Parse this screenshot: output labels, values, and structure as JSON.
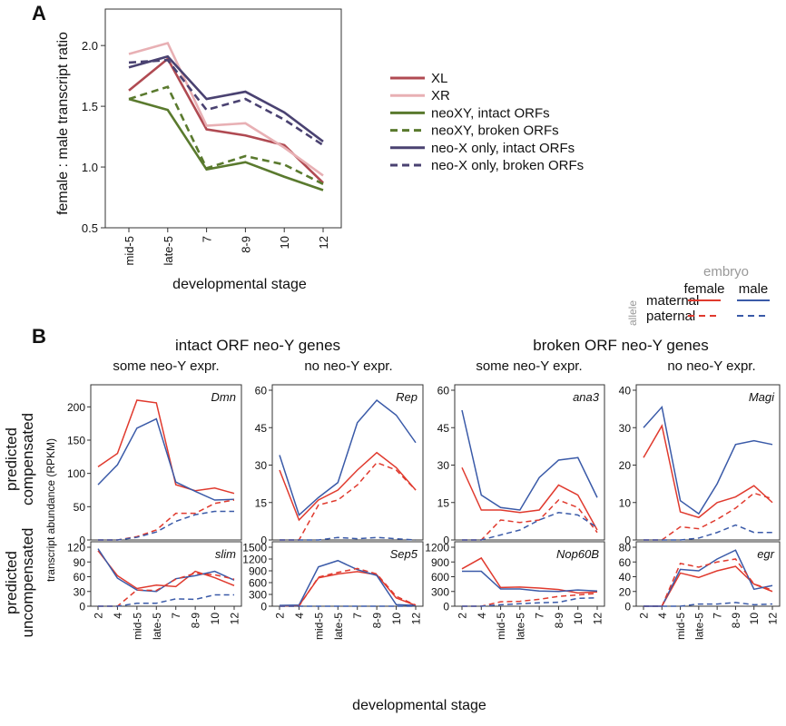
{
  "panel_labels": {
    "a": "A",
    "b": "B"
  },
  "colors": {
    "XL": "#b04a52",
    "XR": "#e8b0b4",
    "neoXY_intact": "#5a7a2e",
    "neoXY_broken": "#5a7a2e",
    "neoX_intact": "#4a4271",
    "neoX_broken": "#4a4271",
    "female": "#e03a2e",
    "male": "#3a5aa8",
    "grey_text": "#999999"
  },
  "chart_data": [
    {
      "id": "A",
      "type": "line",
      "xlabel": "developmental stage",
      "ylabel": "female : male transcript ratio",
      "categories": [
        "mid-5",
        "late-5",
        "7",
        "8-9",
        "10",
        "12"
      ],
      "ylim": [
        0.5,
        2.3
      ],
      "yticks": [
        "0.5",
        "1.0",
        "1.5",
        "2.0"
      ],
      "legend_position": "right",
      "series": [
        {
          "name": "XL",
          "key": "XL",
          "dash": false,
          "values": [
            1.63,
            1.89,
            1.31,
            1.26,
            1.18,
            0.87
          ]
        },
        {
          "name": "XR",
          "key": "XR",
          "dash": false,
          "values": [
            1.93,
            2.02,
            1.34,
            1.36,
            1.16,
            0.93
          ]
        },
        {
          "name": "neoXY, intact ORFs",
          "key": "neoXY_intact",
          "dash": false,
          "values": [
            1.56,
            1.47,
            0.98,
            1.04,
            0.92,
            0.81
          ]
        },
        {
          "name": "neoXY, broken ORFs",
          "key": "neoXY_broken",
          "dash": true,
          "values": [
            1.56,
            1.66,
            0.99,
            1.09,
            1.02,
            0.86
          ]
        },
        {
          "name": "neo-X only, intact ORFs",
          "key": "neoX_intact",
          "dash": false,
          "values": [
            1.82,
            1.91,
            1.56,
            1.62,
            1.45,
            1.21
          ]
        },
        {
          "name": "neo-X only, broken ORFs",
          "key": "neoX_broken",
          "dash": true,
          "values": [
            1.86,
            1.88,
            1.47,
            1.56,
            1.39,
            1.18
          ]
        }
      ]
    },
    {
      "id": "B",
      "type": "line",
      "xlabel": "developmental stage",
      "ylabel": "transcript abundance (RPKM)",
      "categories": [
        "2",
        "4",
        "mid-5",
        "late-5",
        "7",
        "8-9",
        "10",
        "12"
      ],
      "key": {
        "embryo": "embryo",
        "allele": "allele",
        "female": "female",
        "male": "male",
        "maternal": "maternal",
        "paternal": "paternal"
      },
      "group_titles": [
        "intact ORF neo-Y genes",
        "broken ORF neo-Y genes"
      ],
      "column_titles": [
        "some neo-Y expr.",
        "no neo-Y expr.",
        "some neo-Y expr.",
        "no neo-Y expr."
      ],
      "row_titles": [
        {
          "line1": "predicted",
          "line2": "compensated"
        },
        {
          "line1": "predicted",
          "line2": "uncompensated"
        }
      ],
      "panels": [
        {
          "gene": "Dmn",
          "ylim": [
            0,
            225
          ],
          "yticks": [
            0,
            50,
            100,
            150,
            200
          ],
          "series": {
            "female_maternal": [
              110,
              130,
              210,
              206,
              83,
              74,
              78,
              70
            ],
            "male_maternal": [
              83,
              113,
              168,
              182,
              87,
              73,
              60,
              61
            ],
            "female_paternal": [
              0,
              0,
              5,
              15,
              40,
              40,
              55,
              60
            ],
            "male_paternal": [
              0,
              0,
              4,
              12,
              28,
              38,
              43,
              43
            ]
          }
        },
        {
          "gene": "Rep",
          "ylim": [
            0,
            60
          ],
          "yticks": [
            0,
            15,
            30,
            45,
            60
          ],
          "series": {
            "female_maternal": [
              28,
              8,
              16,
              20,
              28,
              35,
              29,
              20
            ],
            "male_maternal": [
              34,
              10,
              17,
              23,
              47,
              56,
              50,
              39
            ],
            "female_paternal": [
              0,
              0,
              14,
              16,
              22,
              31,
              28,
              20
            ],
            "male_paternal": [
              0,
              0,
              0,
              1,
              0.5,
              1,
              0.5,
              0
            ]
          }
        },
        {
          "gene": "ana3",
          "ylim": [
            0,
            60
          ],
          "yticks": [
            0,
            15,
            30,
            45,
            60
          ],
          "series": {
            "female_maternal": [
              29,
              12,
              12,
              11,
              12,
              22,
              18,
              4
            ],
            "male_maternal": [
              52,
              18,
              13,
              12,
              25,
              32,
              33,
              17
            ],
            "female_paternal": [
              0,
              0,
              8,
              7,
              8,
              16,
              13,
              3
            ],
            "male_paternal": [
              0,
              0,
              2,
              4,
              8,
              11,
              10,
              5
            ]
          }
        },
        {
          "gene": "Magi",
          "ylim": [
            0,
            40
          ],
          "yticks": [
            0,
            10,
            20,
            30,
            40
          ],
          "series": {
            "female_maternal": [
              22,
              30.5,
              7.5,
              6,
              10,
              11.5,
              14.5,
              10
            ],
            "male_maternal": [
              30,
              35.5,
              10.5,
              7,
              15,
              25.5,
              26.5,
              25.5
            ],
            "female_paternal": [
              0,
              0,
              3.5,
              3,
              5.5,
              8.5,
              12.5,
              11
            ],
            "male_paternal": [
              0,
              0,
              0,
              0.5,
              2,
              4,
              2,
              2
            ]
          }
        },
        {
          "gene": "slim",
          "ylim": [
            0,
            120
          ],
          "yticks": [
            0,
            30,
            60,
            90,
            120
          ],
          "series": {
            "female_maternal": [
              113,
              62,
              36,
              43,
              40,
              71,
              58,
              42
            ],
            "male_maternal": [
              117,
              57,
              33,
              30,
              56,
              62,
              71,
              53
            ],
            "female_paternal": [
              0,
              0,
              33,
              32,
              55,
              67,
              64,
              55
            ],
            "male_paternal": [
              0,
              0,
              6,
              6,
              15,
              14,
              23,
              23
            ]
          }
        },
        {
          "gene": "Sep5",
          "ylim": [
            0,
            1500
          ],
          "yticks": [
            0,
            300,
            600,
            900,
            1200,
            1500
          ],
          "series": {
            "female_maternal": [
              10,
              20,
              720,
              820,
              880,
              800,
              210,
              20
            ],
            "male_maternal": [
              20,
              30,
              1000,
              1160,
              930,
              780,
              40,
              20
            ],
            "female_paternal": [
              0,
              0,
              740,
              860,
              960,
              820,
              250,
              30
            ],
            "male_paternal": [
              0,
              0,
              0,
              0,
              0,
              0,
              0,
              0
            ]
          }
        },
        {
          "gene": "Nop60B",
          "ylim": [
            0,
            1200
          ],
          "yticks": [
            0,
            300,
            600,
            900,
            1200
          ],
          "series": {
            "female_maternal": [
              760,
              980,
              380,
              390,
              370,
              340,
              270,
              290
            ],
            "male_maternal": [
              710,
              710,
              350,
              350,
              310,
              300,
              330,
              310
            ],
            "female_paternal": [
              0,
              0,
              90,
              100,
              140,
              200,
              230,
              260
            ],
            "male_paternal": [
              0,
              0,
              30,
              50,
              70,
              80,
              160,
              170
            ]
          }
        },
        {
          "gene": "egr",
          "ylim": [
            0,
            80
          ],
          "yticks": [
            0,
            20,
            40,
            60,
            80
          ],
          "series": {
            "female_maternal": [
              0,
              0,
              45,
              39,
              48,
              54,
              30,
              20
            ],
            "male_maternal": [
              0,
              0,
              50,
              48,
              64,
              76,
              23,
              28
            ],
            "female_paternal": [
              0,
              0,
              58,
              53,
              60,
              64,
              30,
              22
            ],
            "male_paternal": [
              0,
              0,
              0,
              3,
              3,
              5,
              2,
              3
            ]
          }
        }
      ]
    }
  ]
}
